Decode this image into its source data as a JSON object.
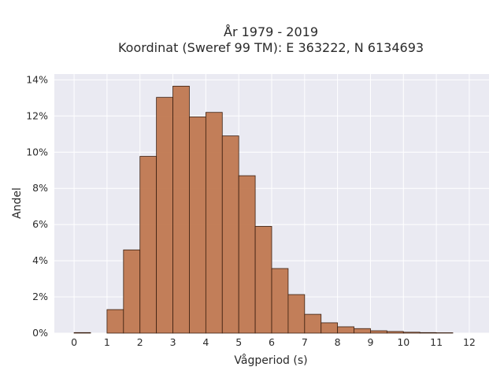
{
  "chart_data": {
    "type": "bar",
    "title_line1": "År 1979 - 2019",
    "title_line2": "Koordinat (Sweref 99 TM): E 363222, N 6134693",
    "xlabel": "Vågperiod (s)",
    "ylabel": "Andel",
    "xlim": [
      -0.6,
      12.6
    ],
    "ylim": [
      0,
      0.1432
    ],
    "x_ticks": [
      0,
      1,
      2,
      3,
      4,
      5,
      6,
      7,
      8,
      9,
      10,
      11,
      12
    ],
    "y_ticks": [
      {
        "value": 0,
        "label": "0%"
      },
      {
        "value": 0.02,
        "label": "2%"
      },
      {
        "value": 0.04,
        "label": "4%"
      },
      {
        "value": 0.06,
        "label": "6%"
      },
      {
        "value": 0.08,
        "label": "8%"
      },
      {
        "value": 0.1,
        "label": "10%"
      },
      {
        "value": 0.12,
        "label": "12%"
      },
      {
        "value": 0.14,
        "label": "14%"
      }
    ],
    "bins": [
      {
        "x0": 0.0,
        "x1": 0.5,
        "value": 0.0003
      },
      {
        "x0": 1.0,
        "x1": 1.5,
        "value": 0.013
      },
      {
        "x0": 1.5,
        "x1": 2.0,
        "value": 0.046
      },
      {
        "x0": 2.0,
        "x1": 2.5,
        "value": 0.0977
      },
      {
        "x0": 2.5,
        "x1": 3.0,
        "value": 0.1303
      },
      {
        "x0": 3.0,
        "x1": 3.5,
        "value": 0.1365
      },
      {
        "x0": 3.5,
        "x1": 4.0,
        "value": 0.1195
      },
      {
        "x0": 4.0,
        "x1": 4.5,
        "value": 0.122
      },
      {
        "x0": 4.5,
        "x1": 5.0,
        "value": 0.109
      },
      {
        "x0": 5.0,
        "x1": 5.5,
        "value": 0.087
      },
      {
        "x0": 5.5,
        "x1": 6.0,
        "value": 0.059
      },
      {
        "x0": 6.0,
        "x1": 6.5,
        "value": 0.0357
      },
      {
        "x0": 6.5,
        "x1": 7.0,
        "value": 0.0213
      },
      {
        "x0": 7.0,
        "x1": 7.5,
        "value": 0.0104
      },
      {
        "x0": 7.5,
        "x1": 8.0,
        "value": 0.0057
      },
      {
        "x0": 8.0,
        "x1": 8.5,
        "value": 0.0035
      },
      {
        "x0": 8.5,
        "x1": 9.0,
        "value": 0.0025
      },
      {
        "x0": 9.0,
        "x1": 9.5,
        "value": 0.0013
      },
      {
        "x0": 9.5,
        "x1": 10.0,
        "value": 0.0009
      },
      {
        "x0": 10.0,
        "x1": 10.5,
        "value": 0.0005
      },
      {
        "x0": 10.5,
        "x1": 11.0,
        "value": 0.0003
      },
      {
        "x0": 11.0,
        "x1": 11.5,
        "value": 0.0002
      }
    ],
    "colors": {
      "bar_fill": "#c07850",
      "bar_edge": "#3a1f10",
      "plot_background": "#eaeaf2",
      "grid": "#ffffff"
    },
    "grid": true,
    "legend": "none"
  }
}
